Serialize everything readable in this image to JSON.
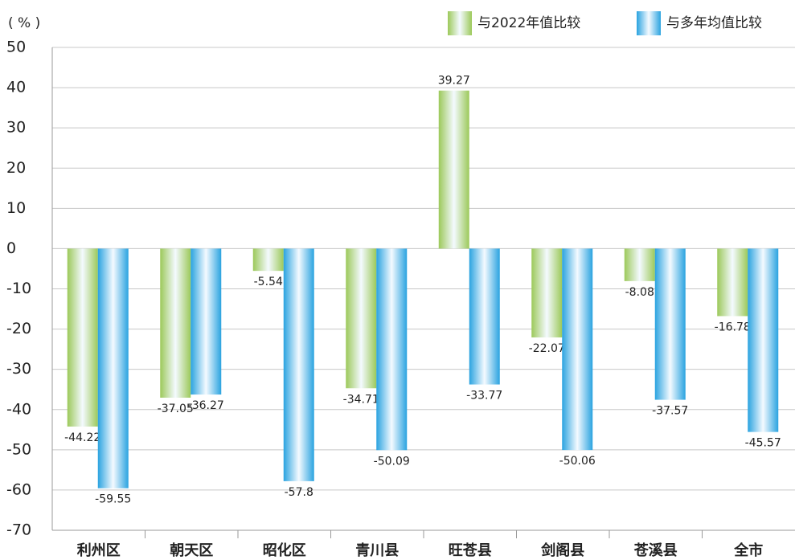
{
  "chart_data": {
    "type": "bar",
    "y_label": "( % )",
    "categories": [
      "利州区",
      "朝天区",
      "昭化区",
      "青川县",
      "旺苍县",
      "剑阁县",
      "苍溪县",
      "全市"
    ],
    "series": [
      {
        "name": "与2022年值比较",
        "color": "#9cc95a",
        "values": [
          -44.22,
          -37.05,
          -5.54,
          -34.71,
          39.27,
          -22.07,
          -8.08,
          -16.78
        ]
      },
      {
        "name": "与多年均值比较",
        "color": "#2aa3e0",
        "values": [
          -59.55,
          -36.27,
          -57.8,
          -50.09,
          -33.77,
          -50.06,
          -37.57,
          -45.57
        ]
      }
    ],
    "ylim": [
      -70,
      50
    ],
    "yticks": [
      -70,
      -60,
      -50,
      -40,
      -30,
      -20,
      -10,
      0,
      10,
      20,
      30,
      40,
      50
    ],
    "grid": true
  }
}
